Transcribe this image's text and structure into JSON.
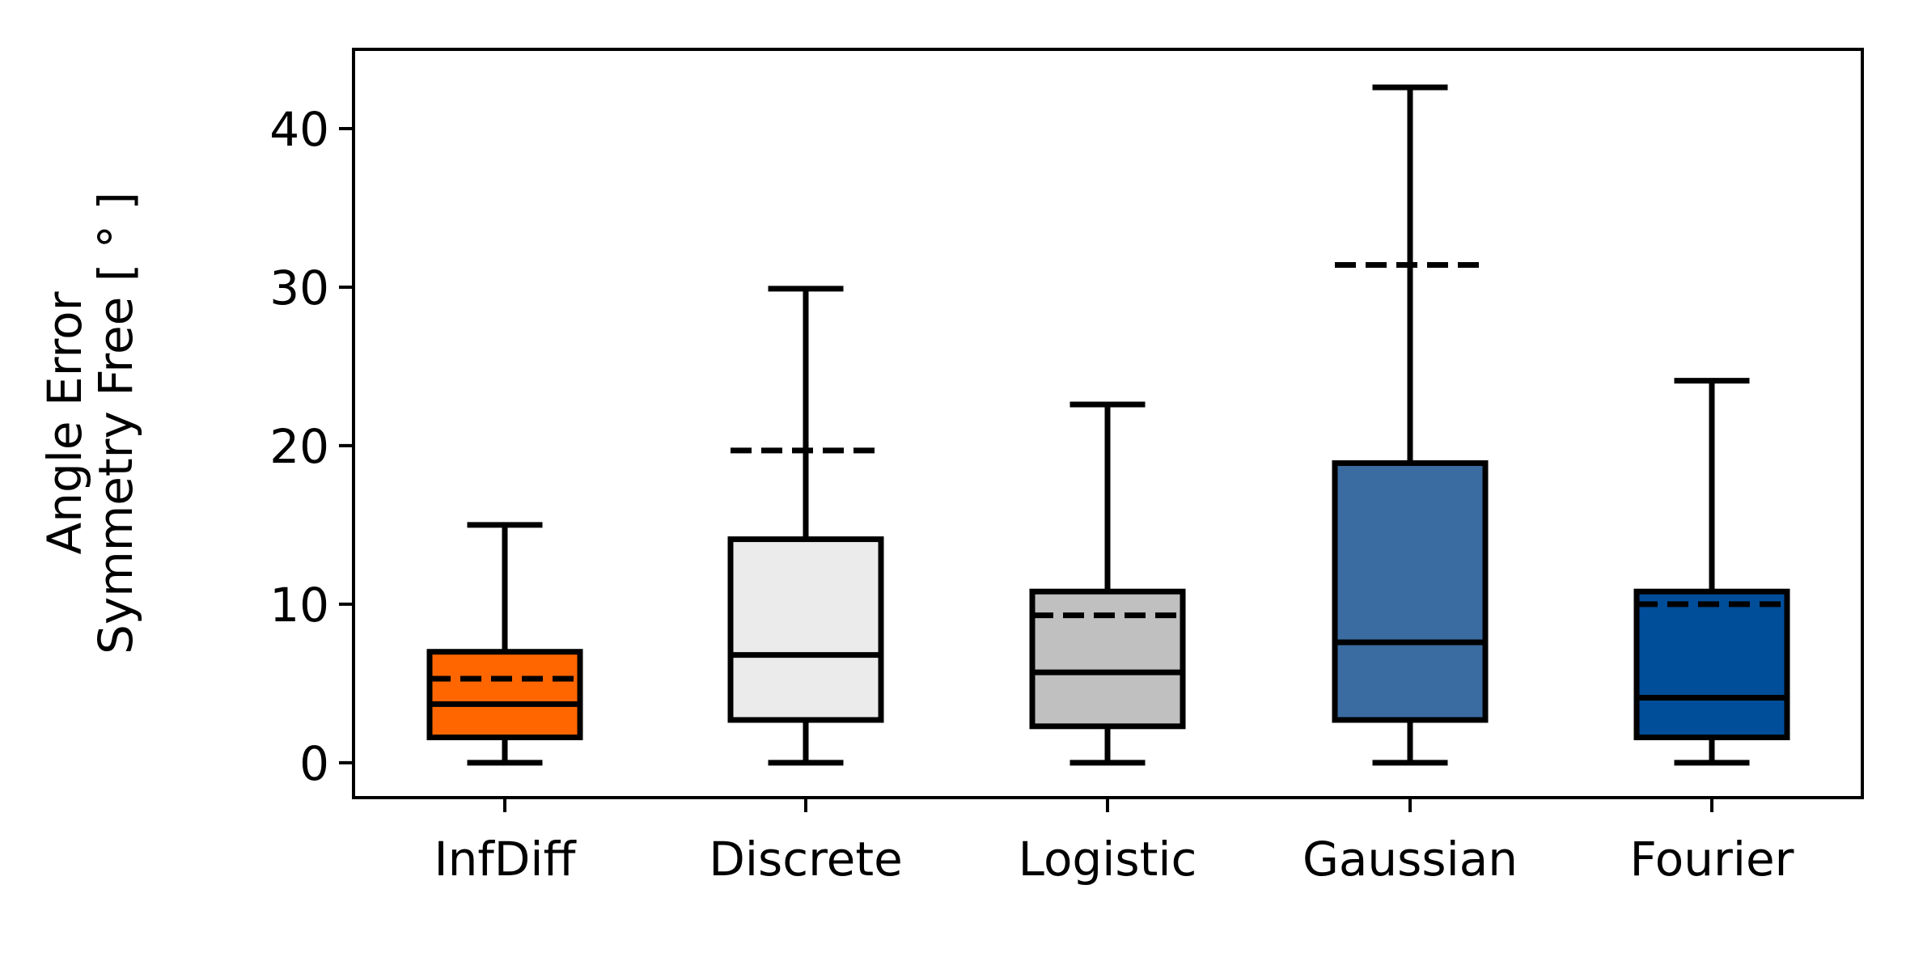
{
  "chart_data": {
    "type": "box",
    "title": "",
    "xlabel": "",
    "ylabel_lines": [
      "Angle Error",
      "Symmetry Free [ ° ]"
    ],
    "ylim": [
      -2.2,
      45
    ],
    "yticks": [
      0,
      10,
      20,
      30,
      40
    ],
    "ytick_labels": [
      "0",
      "10",
      "20",
      "30",
      "40"
    ],
    "categories": [
      "InfDiff",
      "Discrete",
      "Logistic",
      "Gaussian",
      "Fourier"
    ],
    "boxes": [
      {
        "label": "InfDiff",
        "whisker_low": 0.0,
        "q1": 1.6,
        "median": 3.7,
        "q3": 7.0,
        "whisker_high": 15.0,
        "mean": 5.3,
        "color": "#FF6600"
      },
      {
        "label": "Discrete",
        "whisker_low": 0.0,
        "q1": 2.7,
        "median": 6.8,
        "q3": 14.1,
        "whisker_high": 29.9,
        "mean": 19.7,
        "color": "#EBEBEB"
      },
      {
        "label": "Logistic",
        "whisker_low": 0.0,
        "q1": 2.3,
        "median": 5.7,
        "q3": 10.8,
        "whisker_high": 22.6,
        "mean": 9.3,
        "color": "#C0C0C0"
      },
      {
        "label": "Gaussian",
        "whisker_low": 0.0,
        "q1": 2.7,
        "median": 7.6,
        "q3": 18.9,
        "whisker_high": 42.6,
        "mean": 31.4,
        "color": "#3A6CA1"
      },
      {
        "label": "Fourier",
        "whisker_low": 0.0,
        "q1": 1.6,
        "median": 4.1,
        "q3": 10.8,
        "whisker_high": 24.1,
        "mean": 10.0,
        "color": "#004D99"
      }
    ],
    "mean_line_style": "dashed",
    "grid": false,
    "legend": "none"
  }
}
